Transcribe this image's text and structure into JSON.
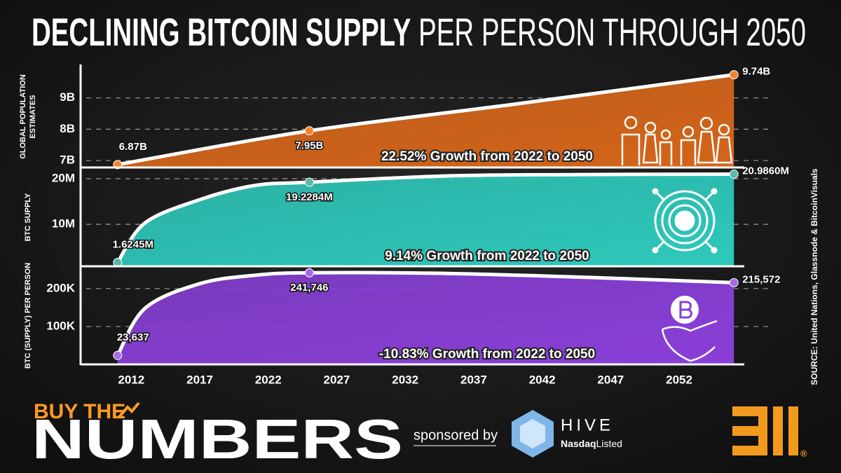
{
  "header": {
    "title_strong": "DECLINING BITCOIN SUPPLY",
    "title_rest": "PER PERSON THROUGH 2050"
  },
  "chart_data": [
    {
      "type": "area",
      "y_label": [
        "GLOBAL POPULATION",
        "ESTIMATES"
      ],
      "color": "#d4651a",
      "marker_color": "#f5832a",
      "x": [
        2011,
        2025,
        2040,
        2056
      ],
      "values": [
        6.87,
        7.95,
        8.8,
        9.74
      ],
      "value_labels": [
        "6.87B",
        "7.95B",
        null,
        "9.74B"
      ],
      "xlim": [
        2008.3,
        2058.7
      ],
      "ylim": [
        6.8,
        10
      ],
      "yticks": [
        {
          "value": 7,
          "label": "7B"
        },
        {
          "value": 8,
          "label": "8B"
        },
        {
          "value": 9,
          "label": "9B"
        }
      ],
      "grid": true,
      "annotation": "22.52% Growth from 2022 to 2050"
    },
    {
      "type": "area",
      "y_label": [
        "BTC SUPPLY"
      ],
      "color": "#2ec9bb",
      "marker_color": "#58b9a8",
      "x": [
        2011,
        2013,
        2017,
        2021,
        2025,
        2035,
        2045,
        2056
      ],
      "values": [
        1.6245,
        10.3,
        15.4,
        18.5,
        19.2284,
        20.6,
        20.9,
        20.986
      ],
      "value_labels": [
        "1.6245M",
        null,
        null,
        null,
        "19.2284M",
        null,
        null,
        "20.9860M"
      ],
      "xlim": [
        2008.3,
        2058.7
      ],
      "ylim": [
        0.8,
        22.3
      ],
      "yticks": [
        {
          "value": 10,
          "label": "10M"
        },
        {
          "value": 20,
          "label": "20M"
        }
      ],
      "grid": true,
      "annotation": "9.14% Growth from 2022 to 2050"
    },
    {
      "type": "area",
      "y_label": [
        "BTC (SUPPLY) PER PERSON"
      ],
      "color": "#8a3fd8",
      "marker_color": "#a66ce8",
      "x": [
        2011,
        2013,
        2017,
        2021,
        2025,
        2035,
        2045,
        2056
      ],
      "values": [
        23.637,
        148,
        213,
        235,
        241.746,
        240,
        230,
        215.572
      ],
      "value_labels": [
        "23,637",
        null,
        null,
        null,
        "241,746",
        null,
        null,
        "215,572"
      ],
      "xlim": [
        2008.3,
        2058.7
      ],
      "ylim": [
        0,
        257
      ],
      "yticks": [
        {
          "value": 100,
          "label": "100K"
        },
        {
          "value": 200,
          "label": "200K"
        }
      ],
      "xticks": [
        2012,
        2017,
        2022,
        2027,
        2032,
        2037,
        2042,
        2047,
        2052
      ],
      "grid": true,
      "annotation": "-10.83% Growth from 2022 to 2050"
    }
  ],
  "source": "SOURCE: United Nations, Glassnode & BitcoinVisuals",
  "brand": {
    "top": "BUY THE",
    "main": "NUMBERS"
  },
  "sponsor": {
    "text": "sponsored by",
    "name": "HIVE",
    "sub_strong": "Nasdaq",
    "sub": "Listed"
  },
  "logo_mark": "®"
}
